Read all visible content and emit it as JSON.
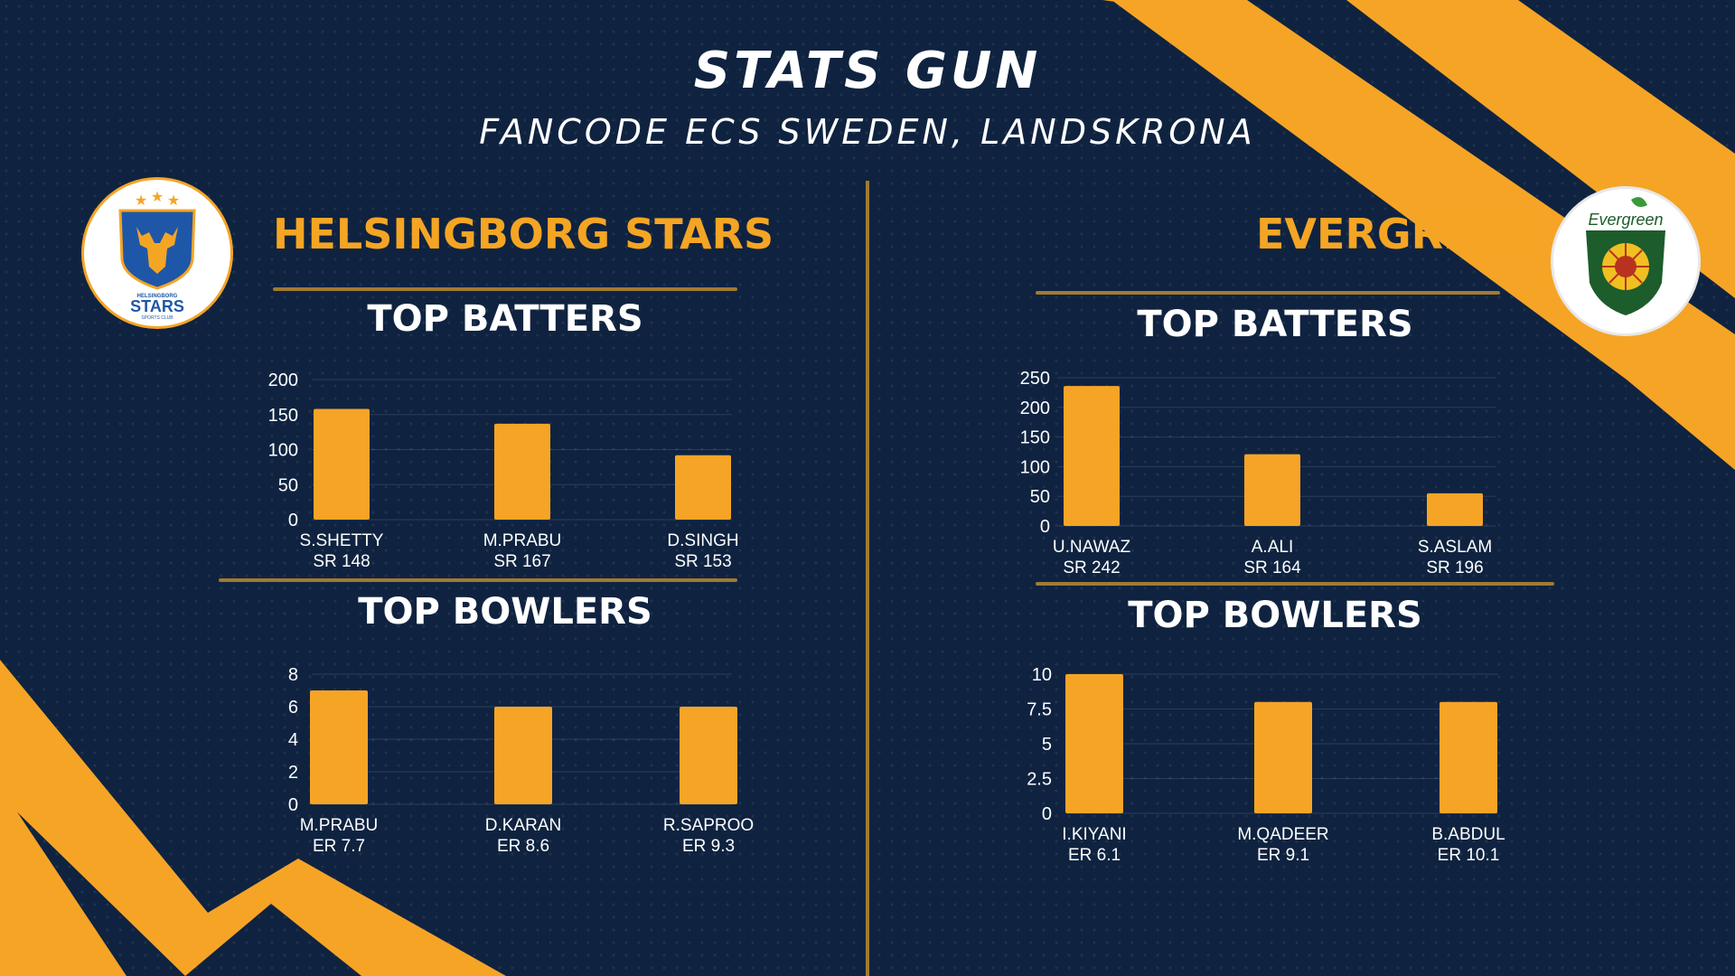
{
  "header": {
    "title": "STATS GUN",
    "subtitle": "FANCODE ECS SWEDEN, LANDSKRONA"
  },
  "colors": {
    "background": "#0f2340",
    "accent": "#f5a524",
    "bar": "#f6a426",
    "rule": "#a07a32",
    "text": "#ffffff"
  },
  "teams": {
    "left": {
      "name": "HELSINGBORG STARS",
      "logo": {
        "line1": "HELSINGBORG",
        "line2": "STARS",
        "line3": "SPORTS CLUB"
      }
    },
    "right": {
      "name": "EVERGREEN",
      "logo": {
        "line1": "Evergreen"
      }
    }
  },
  "sections": {
    "batters": "TOP BATTERS",
    "bowlers": "TOP BOWLERS"
  },
  "chart_data": [
    {
      "type": "bar",
      "title": "TOP BATTERS",
      "team": "HELSINGBORG STARS",
      "categories": [
        "S.SHETTY",
        "M.PRABU",
        "D.SINGH"
      ],
      "sublabels": [
        "SR 148",
        "SR 167",
        "SR 153"
      ],
      "values": [
        158,
        137,
        92
      ],
      "ylim": [
        0,
        200
      ],
      "yticks": [
        0,
        50,
        100,
        150,
        200
      ],
      "grid": true
    },
    {
      "type": "bar",
      "title": "TOP BOWLERS",
      "team": "HELSINGBORG STARS",
      "categories": [
        "M.PRABU",
        "D.KARAN",
        "R.SAPROO"
      ],
      "sublabels": [
        "ER 7.7",
        "ER 8.6",
        "ER 9.3"
      ],
      "values": [
        7,
        6,
        6
      ],
      "ylim": [
        0,
        8
      ],
      "yticks": [
        0,
        2,
        4,
        6,
        8
      ],
      "grid": true
    },
    {
      "type": "bar",
      "title": "TOP BATTERS",
      "team": "EVERGREEN",
      "categories": [
        "U.NAWAZ",
        "A.ALI",
        "S.ASLAM"
      ],
      "sublabels": [
        "SR 242",
        "SR 164",
        "SR 196"
      ],
      "values": [
        236,
        121,
        55
      ],
      "ylim": [
        0,
        250
      ],
      "yticks": [
        0,
        50,
        100,
        150,
        200,
        250
      ],
      "grid": true
    },
    {
      "type": "bar",
      "title": "TOP BOWLERS",
      "team": "EVERGREEN",
      "categories": [
        "I.KIYANI",
        "M.QADEER",
        "B.ABDUL"
      ],
      "sublabels": [
        "ER 6.1",
        "ER 9.1",
        "ER 10.1"
      ],
      "values": [
        10,
        8,
        8
      ],
      "ylim": [
        0,
        10
      ],
      "yticks": [
        0,
        2.5,
        5,
        7.5,
        10
      ],
      "grid": true
    }
  ]
}
